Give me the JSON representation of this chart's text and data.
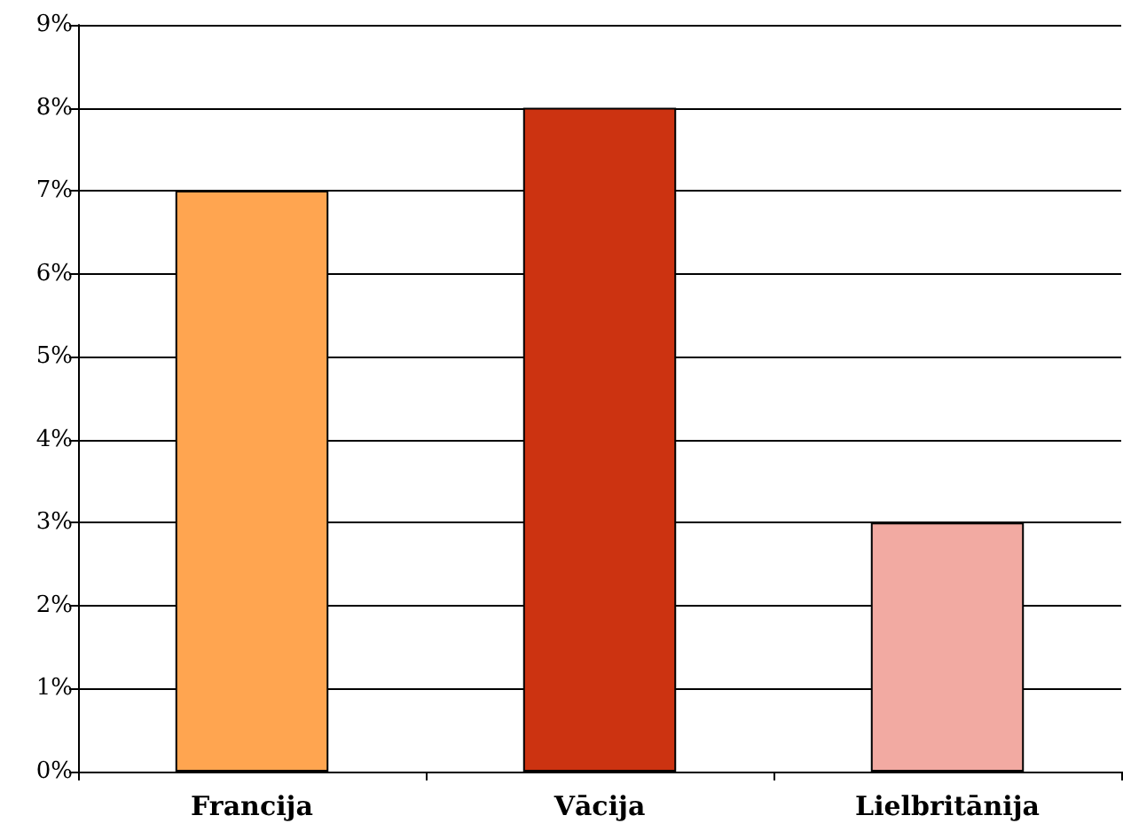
{
  "chart_data": {
    "type": "bar",
    "categories": [
      "Francija",
      "Vācija",
      "Lielbritānija"
    ],
    "values": [
      7,
      8,
      3
    ],
    "colors": [
      "#ffa550",
      "#cc3311",
      "#f2aaa2"
    ],
    "ylim": [
      0,
      9
    ],
    "yticks": [
      {
        "value": 0,
        "label": "0%"
      },
      {
        "value": 1,
        "label": "1%"
      },
      {
        "value": 2,
        "label": "2%"
      },
      {
        "value": 3,
        "label": "3%"
      },
      {
        "value": 4,
        "label": "4%"
      },
      {
        "value": 5,
        "label": "5%"
      },
      {
        "value": 6,
        "label": "6%"
      },
      {
        "value": 7,
        "label": "7%"
      },
      {
        "value": 8,
        "label": "8%"
      },
      {
        "value": 9,
        "label": "9%"
      }
    ],
    "grid": "y"
  }
}
